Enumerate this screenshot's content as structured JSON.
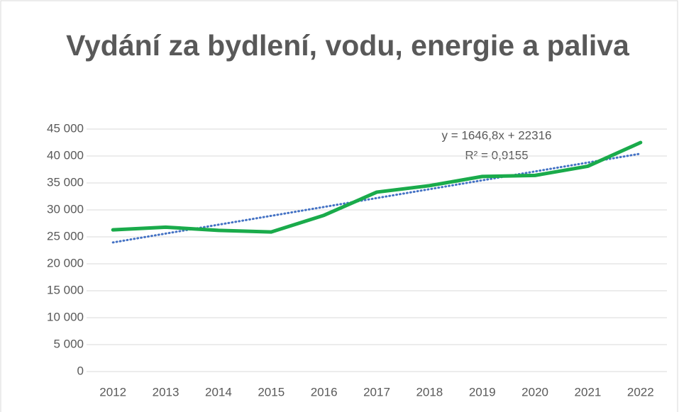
{
  "chart_data": {
    "type": "line",
    "title": "Vydání za bydlení, vodu, energie a paliva",
    "categories": [
      "2012",
      "2013",
      "2014",
      "2015",
      "2016",
      "2017",
      "2018",
      "2019",
      "2020",
      "2021",
      "2022"
    ],
    "series": [
      {
        "name": "Vydání",
        "color": "#1aab4b",
        "values": [
          26300,
          26800,
          26200,
          25900,
          29000,
          33300,
          34500,
          36200,
          36400,
          38100,
          42500
        ]
      }
    ],
    "trendline": {
      "color": "#4472c4",
      "equation": "y = 1646,8x + 22316",
      "r_squared": "R² = 0,9155",
      "values": [
        23962.8,
        25609.6,
        27256.4,
        28903.2,
        30550,
        32196.8,
        33843.6,
        35490.4,
        37137.2,
        38784,
        40430.8
      ]
    },
    "ylim": [
      0,
      45000
    ],
    "yticks": [
      {
        "value": 0,
        "label": "0"
      },
      {
        "value": 5000,
        "label": "5 000"
      },
      {
        "value": 10000,
        "label": "10 000"
      },
      {
        "value": 15000,
        "label": "15 000"
      },
      {
        "value": 20000,
        "label": "20 000"
      },
      {
        "value": 25000,
        "label": "25 000"
      },
      {
        "value": 30000,
        "label": "30 000"
      },
      {
        "value": 35000,
        "label": "35 000"
      },
      {
        "value": 40000,
        "label": "40 000"
      },
      {
        "value": 45000,
        "label": "45 000"
      }
    ],
    "grid": true
  }
}
